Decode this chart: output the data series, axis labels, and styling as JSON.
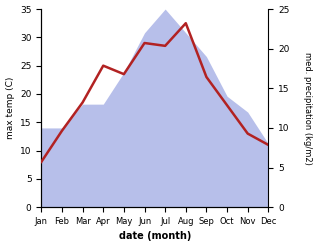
{
  "months": [
    "Jan",
    "Feb",
    "Mar",
    "Apr",
    "May",
    "Jun",
    "Jul",
    "Aug",
    "Sep",
    "Oct",
    "Nov",
    "Dec"
  ],
  "temperature": [
    8.0,
    13.5,
    18.5,
    25.0,
    23.5,
    29.0,
    28.5,
    32.5,
    23.0,
    18.0,
    13.0,
    11.0
  ],
  "precipitation": [
    10,
    10,
    13,
    13,
    17,
    22,
    25,
    22,
    19,
    14,
    12,
    8
  ],
  "temp_color": "#b22222",
  "precip_fill_color": "#b0b8e8",
  "temp_ylim": [
    0,
    35
  ],
  "precip_ylim": [
    0,
    25
  ],
  "xlabel": "date (month)",
  "ylabel_left": "max temp (C)",
  "ylabel_right": "med. precipitation (kg/m2)",
  "background_color": "#ffffff",
  "temp_yticks": [
    0,
    5,
    10,
    15,
    20,
    25,
    30,
    35
  ],
  "precip_yticks": [
    0,
    5,
    10,
    15,
    20,
    25
  ]
}
